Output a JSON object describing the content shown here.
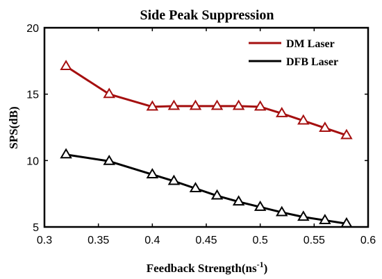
{
  "chart_data": {
    "type": "line",
    "title": "Side Peak Suppression",
    "xlabel": "Feedback Strength(ns",
    "xlabel_sup": "-1",
    "xlabel_close": ")",
    "ylabel": "SPS(dB)",
    "xlim": [
      0.3,
      0.6
    ],
    "ylim": [
      5,
      20
    ],
    "xticks": [
      0.3,
      0.35,
      0.4,
      0.45,
      0.5,
      0.55,
      0.6
    ],
    "xtick_labels": [
      "0.3",
      "0.35",
      "0.4",
      "0.45",
      "0.5",
      "0.55",
      "0.6"
    ],
    "yticks": [
      5,
      10,
      15,
      20
    ],
    "ytick_labels": [
      "5",
      "10",
      "15",
      "20"
    ],
    "grid": false,
    "legend_position": "top-right",
    "marker": "triangle-open",
    "series": [
      {
        "name": "DM Laser",
        "color": "#a50f0f",
        "x": [
          0.32,
          0.36,
          0.4,
          0.42,
          0.44,
          0.46,
          0.48,
          0.5,
          0.52,
          0.54,
          0.56,
          0.58
        ],
        "y": [
          17.1,
          15.0,
          14.05,
          14.1,
          14.1,
          14.1,
          14.1,
          14.05,
          13.55,
          13.0,
          12.45,
          11.9
        ]
      },
      {
        "name": "DFB Laser",
        "color": "#000000",
        "x": [
          0.32,
          0.36,
          0.4,
          0.42,
          0.44,
          0.46,
          0.48,
          0.5,
          0.52,
          0.54,
          0.56,
          0.58
        ],
        "y": [
          10.45,
          9.95,
          8.95,
          8.45,
          7.9,
          7.35,
          6.9,
          6.5,
          6.1,
          5.75,
          5.5,
          5.25
        ]
      }
    ]
  }
}
